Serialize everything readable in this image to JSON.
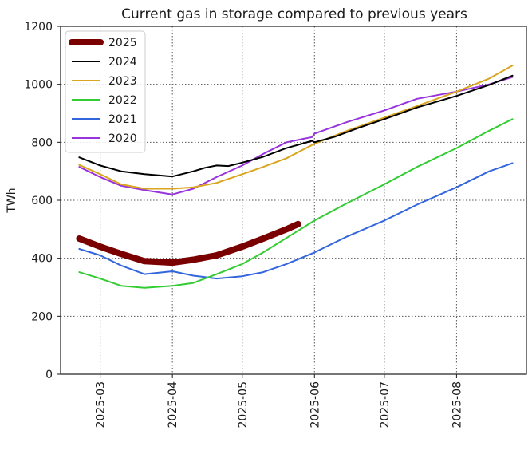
{
  "chart_data": {
    "type": "line",
    "title": "Current gas in storage compared to previous years",
    "xlabel": "",
    "ylabel": "TWh",
    "ylim": [
      0,
      1200
    ],
    "xlim": [
      "2025-02-12",
      "2025-08-31"
    ],
    "x_ticks": [
      "2025-03",
      "2025-04",
      "2025-05",
      "2025-06",
      "2025-07",
      "2025-08"
    ],
    "y_ticks": [
      0,
      200,
      400,
      600,
      800,
      1000,
      1200
    ],
    "grid": true,
    "grid_style": "dotted",
    "legend_position": "top-left",
    "series": [
      {
        "name": "2025",
        "color": "#7a0000",
        "width": 8,
        "x": [
          "2025-02-20",
          "2025-03-01",
          "2025-03-10",
          "2025-03-20",
          "2025-04-01",
          "2025-04-10",
          "2025-04-20",
          "2025-05-01",
          "2025-05-10",
          "2025-05-20",
          "2025-05-25"
        ],
        "y": [
          468,
          440,
          415,
          390,
          385,
          395,
          410,
          440,
          468,
          500,
          518
        ]
      },
      {
        "name": "2024",
        "color": "#000000",
        "width": 2,
        "x": [
          "2025-02-20",
          "2025-03-01",
          "2025-03-10",
          "2025-03-20",
          "2025-04-01",
          "2025-04-10",
          "2025-04-15",
          "2025-04-20",
          "2025-04-25",
          "2025-05-01",
          "2025-05-10",
          "2025-05-20",
          "2025-05-31",
          "2025-06-01",
          "2025-06-10",
          "2025-06-20",
          "2025-07-01",
          "2025-07-15",
          "2025-08-01",
          "2025-08-15",
          "2025-08-25"
        ],
        "y": [
          748,
          720,
          700,
          690,
          682,
          700,
          712,
          720,
          718,
          730,
          750,
          780,
          805,
          800,
          820,
          850,
          880,
          920,
          960,
          998,
          1030
        ]
      },
      {
        "name": "2023",
        "color": "#daa520",
        "width": 2,
        "x": [
          "2025-02-20",
          "2025-03-01",
          "2025-03-10",
          "2025-03-20",
          "2025-04-01",
          "2025-04-10",
          "2025-04-20",
          "2025-05-01",
          "2025-05-10",
          "2025-05-20",
          "2025-06-01",
          "2025-06-15",
          "2025-07-01",
          "2025-07-15",
          "2025-08-01",
          "2025-08-15",
          "2025-08-25"
        ],
        "y": [
          722,
          690,
          655,
          640,
          640,
          645,
          660,
          690,
          715,
          745,
          795,
          840,
          885,
          925,
          975,
          1020,
          1065
        ]
      },
      {
        "name": "2022",
        "color": "#33cc33",
        "width": 2,
        "x": [
          "2025-02-20",
          "2025-03-01",
          "2025-03-10",
          "2025-03-20",
          "2025-04-01",
          "2025-04-10",
          "2025-04-20",
          "2025-05-01",
          "2025-05-10",
          "2025-05-20",
          "2025-06-01",
          "2025-06-15",
          "2025-07-01",
          "2025-07-15",
          "2025-08-01",
          "2025-08-15",
          "2025-08-25"
        ],
        "y": [
          352,
          330,
          305,
          298,
          305,
          315,
          345,
          380,
          420,
          470,
          530,
          590,
          655,
          715,
          780,
          840,
          880
        ]
      },
      {
        "name": "2021",
        "color": "#3366dd",
        "width": 2,
        "x": [
          "2025-02-20",
          "2025-03-01",
          "2025-03-10",
          "2025-03-20",
          "2025-04-01",
          "2025-04-10",
          "2025-04-20",
          "2025-05-01",
          "2025-05-10",
          "2025-05-20",
          "2025-06-01",
          "2025-06-15",
          "2025-07-01",
          "2025-07-15",
          "2025-08-01",
          "2025-08-15",
          "2025-08-25"
        ],
        "y": [
          432,
          410,
          375,
          345,
          355,
          340,
          330,
          338,
          352,
          380,
          420,
          475,
          530,
          585,
          645,
          700,
          728
        ]
      },
      {
        "name": "2020",
        "color": "#9933dd",
        "width": 2,
        "x": [
          "2025-02-20",
          "2025-03-01",
          "2025-03-10",
          "2025-03-20",
          "2025-04-01",
          "2025-04-10",
          "2025-04-20",
          "2025-05-01",
          "2025-05-10",
          "2025-05-20",
          "2025-05-31",
          "2025-06-01",
          "2025-06-15",
          "2025-07-01",
          "2025-07-15",
          "2025-08-01",
          "2025-08-15",
          "2025-08-25"
        ],
        "y": [
          715,
          680,
          650,
          635,
          620,
          640,
          680,
          720,
          760,
          800,
          818,
          830,
          870,
          910,
          950,
          975,
          1000,
          1025
        ]
      }
    ]
  }
}
